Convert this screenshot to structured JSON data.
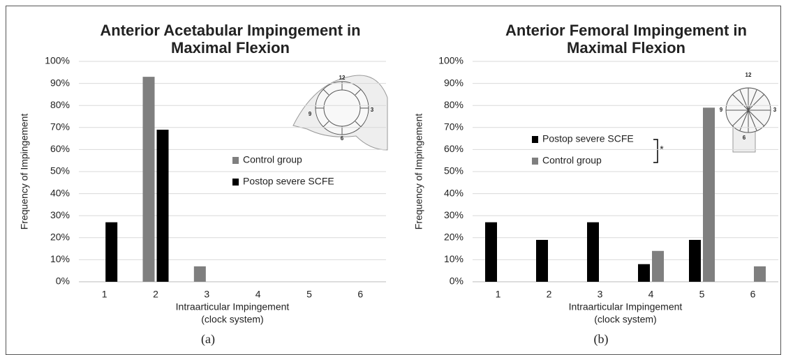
{
  "chart_data": [
    {
      "type": "bar",
      "title": [
        "Anterior Acetabular Impingement in",
        "Maximal Flexion"
      ],
      "y_label": "Frequency of Impingement",
      "x_label": [
        "Intraarticular Impingement",
        "(clock system)"
      ],
      "caption": "(a)",
      "categories": [
        "1",
        "2",
        "3",
        "4",
        "5",
        "6"
      ],
      "series": [
        {
          "name": "Control group",
          "color": "#7f7f7f",
          "values": [
            0,
            93,
            7,
            0,
            0,
            0
          ]
        },
        {
          "name": "Postop severe SCFE",
          "color": "#000000",
          "values": [
            27,
            69,
            0,
            0,
            0,
            0
          ]
        }
      ],
      "ylim": [
        0,
        100
      ],
      "yticks": [
        {
          "value": 0,
          "label": "0%"
        },
        {
          "value": 10,
          "label": "10%"
        },
        {
          "value": 20,
          "label": "20%"
        },
        {
          "value": 30,
          "label": "30%"
        },
        {
          "value": 40,
          "label": "40%"
        },
        {
          "value": 50,
          "label": "50%"
        },
        {
          "value": 60,
          "label": "60%"
        },
        {
          "value": 70,
          "label": "70%"
        },
        {
          "value": 80,
          "label": "80%"
        },
        {
          "value": 90,
          "label": "90%"
        },
        {
          "value": 100,
          "label": "100%"
        }
      ],
      "grid": true,
      "inset_labels": [
        "12",
        "3",
        "6",
        "9"
      ]
    },
    {
      "type": "bar",
      "title": [
        "Anterior Femoral Impingement in",
        "Maximal Flexion"
      ],
      "y_label": "Frequency of Impingement",
      "x_label": [
        "Intraarticular Impingement",
        "(clock system)"
      ],
      "caption": "(b)",
      "annotation": "*",
      "categories": [
        "1",
        "2",
        "3",
        "4",
        "5",
        "6"
      ],
      "series": [
        {
          "name": "Postop severe SCFE",
          "color": "#000000",
          "values": [
            27,
            19,
            27,
            8,
            19,
            0
          ]
        },
        {
          "name": "Control group",
          "color": "#7f7f7f",
          "values": [
            0,
            0,
            0,
            14,
            79,
            7
          ]
        }
      ],
      "ylim": [
        0,
        100
      ],
      "yticks": [
        {
          "value": 0,
          "label": "0%"
        },
        {
          "value": 10,
          "label": "10%"
        },
        {
          "value": 20,
          "label": "20%"
        },
        {
          "value": 30,
          "label": "30%"
        },
        {
          "value": 40,
          "label": "40%"
        },
        {
          "value": 50,
          "label": "50%"
        },
        {
          "value": 60,
          "label": "60%"
        },
        {
          "value": 70,
          "label": "70%"
        },
        {
          "value": 80,
          "label": "80%"
        },
        {
          "value": 90,
          "label": "90%"
        },
        {
          "value": 100,
          "label": "100%"
        }
      ],
      "grid": true,
      "inset_labels": [
        "12",
        "3",
        "6",
        "9"
      ]
    }
  ]
}
